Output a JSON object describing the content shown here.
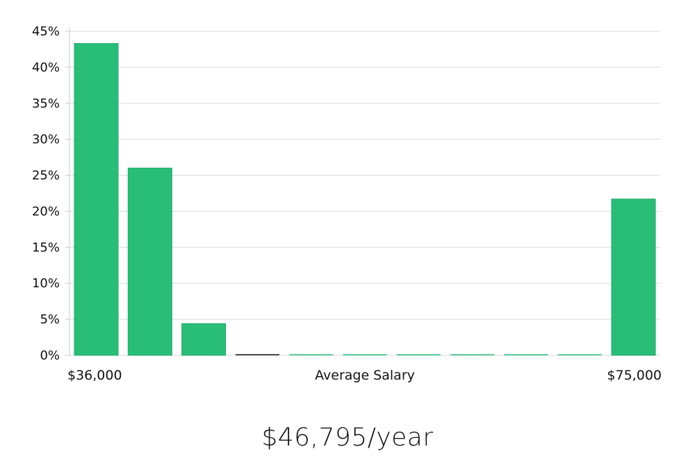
{
  "chart_data": {
    "type": "bar",
    "x_start_label": "$36,000",
    "x_end_label": "$75,000",
    "xlabel": "Average Salary",
    "ylabel": "",
    "title": "",
    "ylim": [
      0,
      45
    ],
    "yticks": [
      0,
      5,
      10,
      15,
      20,
      25,
      30,
      35,
      40,
      45
    ],
    "ytick_labels": [
      "0%",
      "5%",
      "10%",
      "15%",
      "20%",
      "25%",
      "30%",
      "35%",
      "40%",
      "45%"
    ],
    "values": [
      43.3,
      26.0,
      4.4,
      0,
      0,
      0,
      0,
      0,
      0,
      0,
      21.7
    ],
    "grid": true,
    "legend": "none"
  },
  "summary": {
    "average_salary": "$46,795/year"
  },
  "colors": {
    "bar": "#28be78",
    "bar_edge": "#20a866",
    "grid": "#d9d9d9",
    "axis": "#cccccc",
    "zero_bar_highlight": "#111111"
  }
}
